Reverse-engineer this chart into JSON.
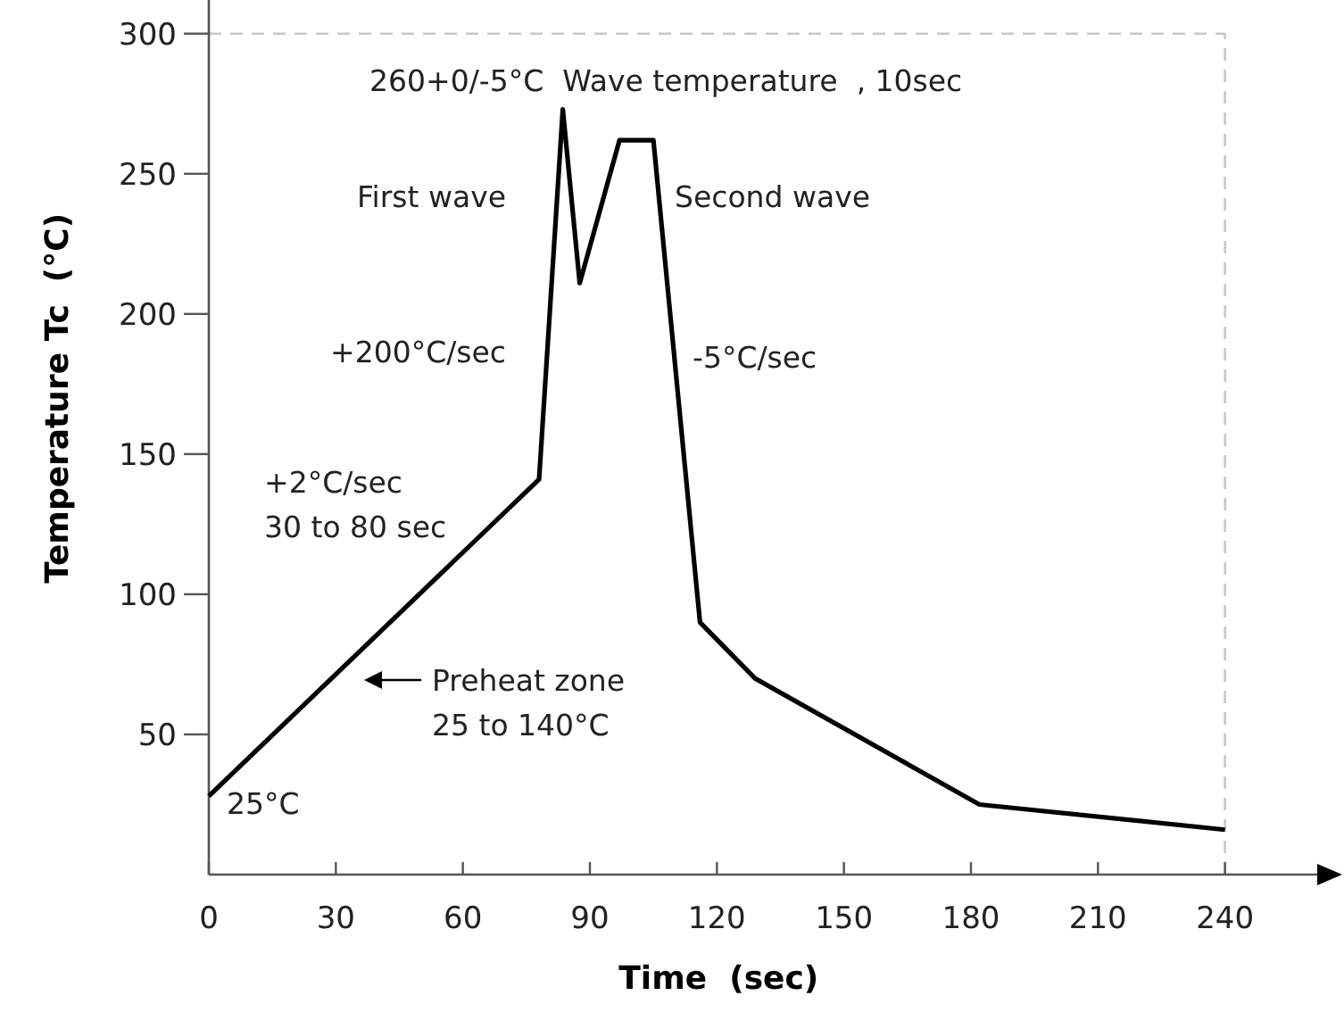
{
  "chart_data": {
    "type": "line",
    "xlabel": "Time  (sec)",
    "ylabel": "Temperature Tc  (°C)",
    "x": [
      0,
      78,
      83.6,
      87.6,
      97,
      105,
      116,
      129,
      182,
      240
    ],
    "series": [
      {
        "color": "#000000",
        "values": [
          28,
          141,
          273,
          211,
          262,
          262,
          90,
          70,
          25,
          16
        ]
      }
    ],
    "xlim": [
      0,
      266
    ],
    "ylim": [
      0,
      312
    ],
    "xticks": [
      0,
      30,
      60,
      90,
      120,
      150,
      180,
      210,
      240
    ],
    "yticks": [
      50,
      100,
      150,
      200,
      250,
      300
    ],
    "grid": false,
    "marker": "none",
    "line_style": "solid",
    "ref_lines": [
      {
        "axis": "y",
        "value": 300,
        "color": "#c8c8c8",
        "line_style": "dashed"
      },
      {
        "axis": "x",
        "value": 240,
        "color": "#c8c8c8",
        "line_style": "dashed"
      }
    ],
    "annotations": [
      "260+0/-5°C  Wave temperature  , 10sec",
      "First wave",
      "Second wave",
      "+200°C/sec",
      "-5°C/sec",
      "+2°C/sec",
      "30 to 80 sec",
      "Preheat zone",
      "25 to 140°C",
      "25°C"
    ]
  }
}
